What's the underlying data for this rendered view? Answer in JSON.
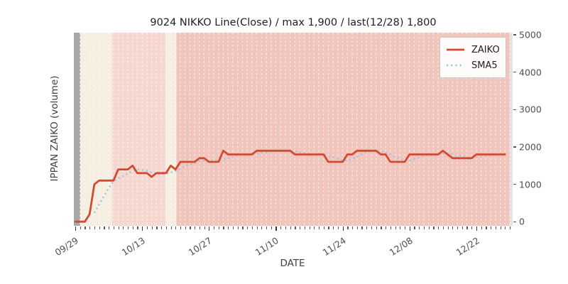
{
  "chart_data": {
    "type": "line",
    "title": "9024 NIKKO Line(Close) / max 1,900 / last(12/28) 1,800",
    "xlabel": "DATE",
    "ylabel": "IPPAN ZAIKO (volume)",
    "max_value": 1900,
    "last": {
      "date": "12/28",
      "value": 1800
    },
    "x_unit": "daily, day 0 = 09/29, day 90 = 12/28",
    "xlim": [
      -0.3,
      91.6
    ],
    "ylim": [
      -110,
      5060
    ],
    "y_ticks": [
      0,
      1000,
      2000,
      3000,
      4000,
      5000
    ],
    "x_major_ticks": [
      {
        "day": 0,
        "label": "09/29"
      },
      {
        "day": 14,
        "label": "10/13"
      },
      {
        "day": 28,
        "label": "10/27"
      },
      {
        "day": 42,
        "label": "11/10"
      },
      {
        "day": 56,
        "label": "11/24"
      },
      {
        "day": 70,
        "label": "12/08"
      },
      {
        "day": 84,
        "label": "12/22"
      }
    ],
    "x_minor_ticks": "every day",
    "grid": {
      "vertical_daily_lines": true,
      "color": "#ffffff",
      "style": "dashed",
      "horizontal": false
    },
    "legend_position": "upper right",
    "background_bands": [
      {
        "from": -0.3,
        "to": 1.05,
        "color": "#a7a7a7"
      },
      {
        "from": 1.05,
        "to": 7.75,
        "color": "#f5eee1"
      },
      {
        "from": 7.75,
        "to": 18.9,
        "color": "#f6d7cf"
      },
      {
        "from": 18.9,
        "to": 21.2,
        "color": "#f5eee1"
      },
      {
        "from": 21.2,
        "to": 91.0,
        "color": "#f1c5bc"
      }
    ],
    "series": [
      {
        "name": "ZAIKO",
        "color": "#d14b32",
        "style": "solid",
        "values": [
          0,
          0,
          0,
          200,
          1000,
          1100,
          1100,
          1100,
          1100,
          1400,
          1400,
          1400,
          1500,
          1300,
          1300,
          1300,
          1200,
          1300,
          1300,
          1300,
          1500,
          1400,
          1600,
          1600,
          1600,
          1600,
          1700,
          1700,
          1600,
          1600,
          1600,
          1900,
          1800,
          1800,
          1800,
          1800,
          1800,
          1800,
          1900,
          1900,
          1900,
          1900,
          1900,
          1900,
          1900,
          1900,
          1800,
          1800,
          1800,
          1800,
          1800,
          1800,
          1800,
          1600,
          1600,
          1600,
          1600,
          1800,
          1800,
          1900,
          1900,
          1900,
          1900,
          1900,
          1800,
          1800,
          1600,
          1600,
          1600,
          1600,
          1800,
          1800,
          1800,
          1800,
          1800,
          1800,
          1800,
          1900,
          1800,
          1700,
          1700,
          1700,
          1700,
          1700,
          1800,
          1800,
          1800,
          1800,
          1800,
          1800,
          1800
        ]
      },
      {
        "name": "SMA5",
        "color": "#a3c0da",
        "style": "dotted",
        "derived_from": "ZAIKO",
        "window": 5
      }
    ]
  },
  "legend": {
    "items": [
      {
        "label": "ZAIKO",
        "color": "#d14b32",
        "style": "solid"
      },
      {
        "label": "SMA5",
        "color": "#a3c0da",
        "style": "dotted"
      }
    ]
  },
  "colors": {
    "figure_background": "#ffffff",
    "plot_gutter": "#e4e4e4",
    "zaiko_line": "#d14b32",
    "sma5_line": "#a3c0da",
    "tick_text": "#4f4f4f"
  }
}
